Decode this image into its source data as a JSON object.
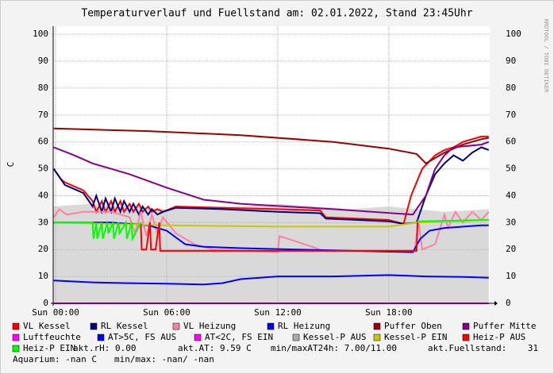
{
  "chart_data": {
    "type": "line",
    "title": "Temperaturverlauf und Fuellstand am: 02.01.2022, Stand 23:45Uhr",
    "ylabel": "C",
    "watermark": "RRDTOOL / TOBI OETIKER",
    "xlim": [
      -0.13,
      23.45
    ],
    "xticks": [
      {
        "value": 0,
        "label": "Sun 00:00"
      },
      {
        "value": 6,
        "label": "Sun 06:00"
      },
      {
        "value": 12,
        "label": "Sun 12:00"
      },
      {
        "value": 18,
        "label": "Sun 18:00"
      }
    ],
    "ylim": [
      0,
      103
    ],
    "yticks": [
      0,
      10,
      20,
      30,
      40,
      50,
      60,
      70,
      80,
      90,
      100
    ],
    "grid": true,
    "series": [
      {
        "name": "VL Kessel",
        "color": "#ff0000",
        "x": [
          -0.1,
          0.3,
          0.5,
          1.5,
          2.0,
          2.2,
          2.5,
          2.7,
          3.0,
          3.2,
          3.5,
          3.7,
          4.0,
          4.2,
          4.5,
          4.7,
          5.0,
          5.2,
          5.5,
          5.8,
          6.5,
          9,
          12,
          14.3,
          14.6,
          18,
          18.8,
          19.2,
          19.8,
          20.5,
          21,
          21.5,
          22,
          23,
          23.4
        ],
        "values": [
          50,
          46,
          45,
          42,
          38,
          34,
          38,
          34,
          38,
          34,
          38,
          34,
          37,
          34,
          37,
          34,
          36,
          34,
          35,
          34,
          36,
          35.5,
          35,
          34.5,
          32,
          31,
          29.5,
          40,
          50,
          55,
          57,
          58,
          60,
          62,
          62
        ]
      },
      {
        "name": "RL Kessel",
        "color": "#000080",
        "x": [
          -0.1,
          0.3,
          0.5,
          1.5,
          2.0,
          2.2,
          2.5,
          2.7,
          3.0,
          3.2,
          3.5,
          3.7,
          4.0,
          4.2,
          4.5,
          4.7,
          5.0,
          5.2,
          5.5,
          5.8,
          6.5,
          9,
          12,
          14.3,
          14.6,
          18,
          18.8,
          19.5,
          20,
          20.5,
          21,
          21.5,
          22,
          22.5,
          23,
          23.4
        ],
        "values": [
          50,
          46,
          44,
          41,
          36,
          40,
          34,
          39,
          34,
          39,
          34,
          38,
          34,
          37,
          33,
          36,
          33,
          35,
          33,
          34,
          35.5,
          35,
          34,
          33.5,
          31.5,
          30.5,
          29.5,
          30,
          40,
          48,
          52,
          55,
          53,
          56,
          58,
          57
        ]
      },
      {
        "name": "VL Heizung",
        "color": "#ff80a0",
        "x": [
          -0.1,
          0.2,
          0.6,
          1.5,
          3.0,
          4.0,
          4.3,
          4.6,
          4.9,
          5.2,
          5.5,
          5.8,
          6.5,
          7.5,
          8.5,
          12.0,
          12.1,
          13.0,
          14.5,
          19.4,
          19.6,
          19.8,
          20.5,
          21.0,
          21.2,
          21.6,
          22.0,
          22.5,
          23.0,
          23.4
        ],
        "values": [
          32,
          35,
          33,
          34,
          34,
          32,
          26,
          34,
          25,
          33,
          26,
          32,
          26,
          22,
          20,
          19,
          25,
          23,
          19.5,
          19.5,
          31,
          20,
          22,
          33,
          28,
          34,
          30,
          34,
          31,
          34
        ]
      },
      {
        "name": "RL Heizung",
        "color": "#0000ff",
        "x": [
          -0.1,
          3,
          5,
          6,
          7,
          8,
          10,
          13,
          16,
          19.3,
          19.7,
          20.2,
          21,
          23,
          23.4
        ],
        "values": [
          30,
          30,
          29,
          27,
          22,
          21,
          20.5,
          20,
          19.5,
          19,
          24,
          27,
          28,
          29,
          29
        ]
      },
      {
        "name": "Puffer Oben",
        "color": "#990000",
        "x": [
          -0.1,
          5,
          10,
          15,
          18,
          19.5,
          20,
          21,
          22,
          23,
          23.4
        ],
        "values": [
          65,
          64,
          62.5,
          60,
          57.5,
          55.5,
          52,
          56,
          59,
          61,
          61.5
        ]
      },
      {
        "name": "Puffer Mitte",
        "color": "#880088",
        "x": [
          -0.1,
          1,
          2,
          3,
          4,
          6,
          8,
          10,
          15,
          19.3,
          20,
          20.5,
          21,
          21.5,
          23,
          23.4
        ],
        "values": [
          58,
          55,
          52,
          50,
          48,
          43,
          38.5,
          37,
          35,
          33,
          40,
          50,
          55,
          58,
          59,
          60
        ]
      },
      {
        "name": "Luftfeuchte",
        "color": "#ff00ff",
        "x": [
          -0.1,
          23.4
        ],
        "values": [
          0,
          0
        ]
      },
      {
        "name": "AT>5C, FS AUS",
        "color": "#0000ff",
        "x": [
          -0.1,
          2,
          4,
          6,
          8,
          9,
          10,
          12,
          15,
          18,
          20,
          22,
          23.4
        ],
        "values": [
          8.5,
          7.8,
          7.5,
          7.3,
          7,
          7.5,
          9,
          10,
          10,
          10.5,
          10,
          9.8,
          9.5
        ]
      },
      {
        "name": "AT<2C, FS EIN",
        "color": "#ff00ff",
        "x": [],
        "values": []
      },
      {
        "name": "Kessel-P AUS",
        "color": "#aaaaaa",
        "area": true,
        "x": [
          -0.1,
          2,
          4,
          6,
          8,
          10,
          12,
          14,
          16,
          18,
          19.5,
          21,
          23.4
        ],
        "values": [
          36,
          37,
          36,
          35,
          36,
          36,
          37,
          36,
          35,
          36,
          35,
          34,
          35
        ]
      },
      {
        "name": "Kessel-P EIN",
        "color": "#c8c800",
        "x": [
          -0.1,
          6,
          12,
          18,
          19.5,
          23.4
        ],
        "values": [
          30,
          29,
          28.5,
          28.5,
          30,
          31
        ]
      },
      {
        "name": "Heiz-P AUS",
        "color": "#ff0000",
        "x": [
          4.6,
          4.65,
          4.9,
          5.1,
          5.15,
          5.4,
          5.6,
          5.65,
          19.5,
          19.55
        ],
        "values": [
          30,
          20,
          20,
          30,
          20,
          20,
          30,
          19.5,
          19.5,
          30
        ]
      },
      {
        "name": "Heiz-P EIN",
        "color": "#00ff00",
        "x": [
          -0.1,
          2.0,
          2.05,
          2.2,
          2.25,
          2.5,
          2.55,
          2.8,
          2.85,
          3.1,
          3.15,
          3.4,
          3.45,
          3.8,
          3.85,
          4.1,
          4.15,
          4.6,
          5.6,
          19.6,
          23.4
        ],
        "values": [
          30,
          30,
          24,
          30,
          24,
          30,
          24,
          30,
          26,
          30,
          24,
          30,
          26,
          30,
          24,
          30,
          24,
          30,
          null,
          30.5,
          31
        ]
      }
    ],
    "annotations": [
      "akt.rH: 0.00",
      "akt.AT: 9.59 C",
      "min/maxAT24h: 7.00/11.00",
      "akt.Fuellstand:    31",
      "Aquarium: -nan C",
      "min/max: -nan/ -nan"
    ]
  }
}
